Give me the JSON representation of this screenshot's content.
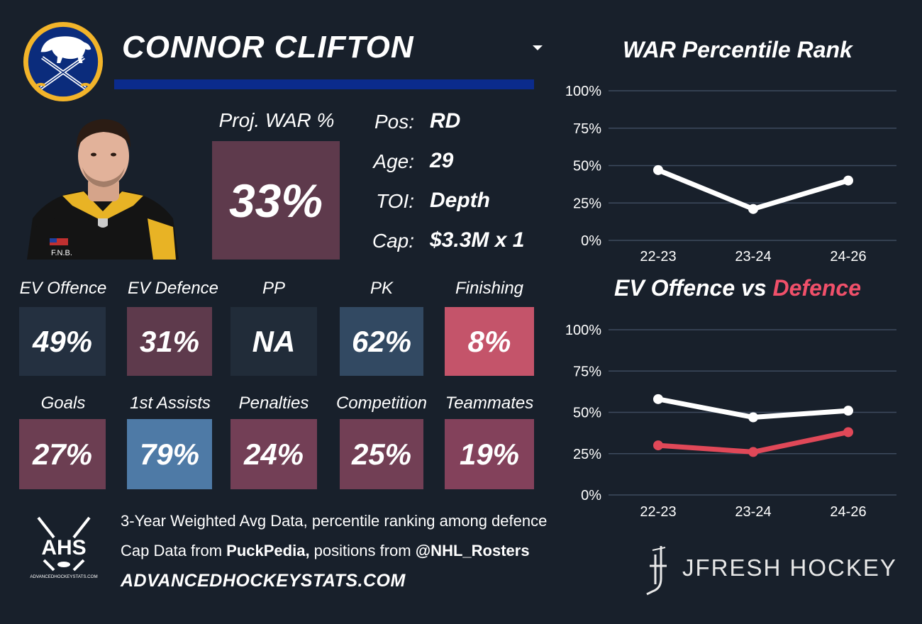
{
  "player": {
    "name": "CONNOR CLIFTON",
    "team_logo": "buffalo-sabres-logo",
    "photo": "player-headshot"
  },
  "colors": {
    "background": "#18202b",
    "underline": "#0b2b8c",
    "offence_line": "#ffffff",
    "defence_line": "#e04858",
    "defence_text": "#f0506a",
    "gridline": "#3d4a5e"
  },
  "proj_war": {
    "label": "Proj. WAR %",
    "value": "33%",
    "color": "#5e3a4c"
  },
  "info": [
    {
      "label": "Pos:",
      "value": "RD"
    },
    {
      "label": "Age:",
      "value": "29"
    },
    {
      "label": "TOI:",
      "value": "Depth"
    },
    {
      "label": "Cap:",
      "value": "$3.3M x 1"
    }
  ],
  "stats_row1": [
    {
      "label": "EV Offence",
      "value": "49%",
      "color": "#243040"
    },
    {
      "label": "EV Defence",
      "value": "31%",
      "color": "#5e3a4c"
    },
    {
      "label": "PP",
      "value": "NA",
      "color": "#212c39"
    },
    {
      "label": "PK",
      "value": "62%",
      "color": "#324962"
    },
    {
      "label": "Finishing",
      "value": "8%",
      "color": "#c4546a"
    }
  ],
  "stats_row2": [
    {
      "label": "Goals",
      "value": "27%",
      "color": "#6c3e52"
    },
    {
      "label": "1st Assists",
      "value": "79%",
      "color": "#4e7aa6"
    },
    {
      "label": "Penalties",
      "value": "24%",
      "color": "#733f56"
    },
    {
      "label": "Competition",
      "value": "25%",
      "color": "#723f55"
    },
    {
      "label": "Teammates",
      "value": "19%",
      "color": "#83415b"
    }
  ],
  "footer": {
    "line1": "3-Year Weighted Avg Data, percentile ranking among defence",
    "line2_prefix": "Cap Data from ",
    "line2_bold1": "PuckPedia,",
    "line2_middle": " positions from ",
    "line2_bold2": "@NHL_Rosters",
    "url": "ADVANCEDHOCKEYSTATS.COM",
    "ahs_logo_text": "AHS",
    "ahs_logo_subtext": "ADVANCEDHOCKEYSTATS.COM",
    "brand": "JFRESH HOCKEY"
  },
  "chart_data": [
    {
      "type": "line",
      "title": "WAR Percentile Rank",
      "categories": [
        "22-23",
        "23-24",
        "24-26"
      ],
      "series": [
        {
          "values": [
            47,
            21,
            40
          ],
          "color": "#ffffff"
        }
      ],
      "yticks": [
        "0%",
        "25%",
        "50%",
        "75%",
        "100%"
      ],
      "ylim": [
        0,
        100
      ],
      "grid": true
    },
    {
      "type": "line",
      "title_part1": "EV Offence vs ",
      "title_part2": "Defence",
      "categories": [
        "22-23",
        "23-24",
        "24-26"
      ],
      "series": [
        {
          "values": [
            58,
            47,
            51
          ],
          "color": "#ffffff"
        },
        {
          "values": [
            30,
            26,
            38
          ],
          "color": "#e04858"
        }
      ],
      "yticks": [
        "0%",
        "25%",
        "50%",
        "75%",
        "100%"
      ],
      "ylim": [
        0,
        100
      ],
      "grid": true
    }
  ]
}
